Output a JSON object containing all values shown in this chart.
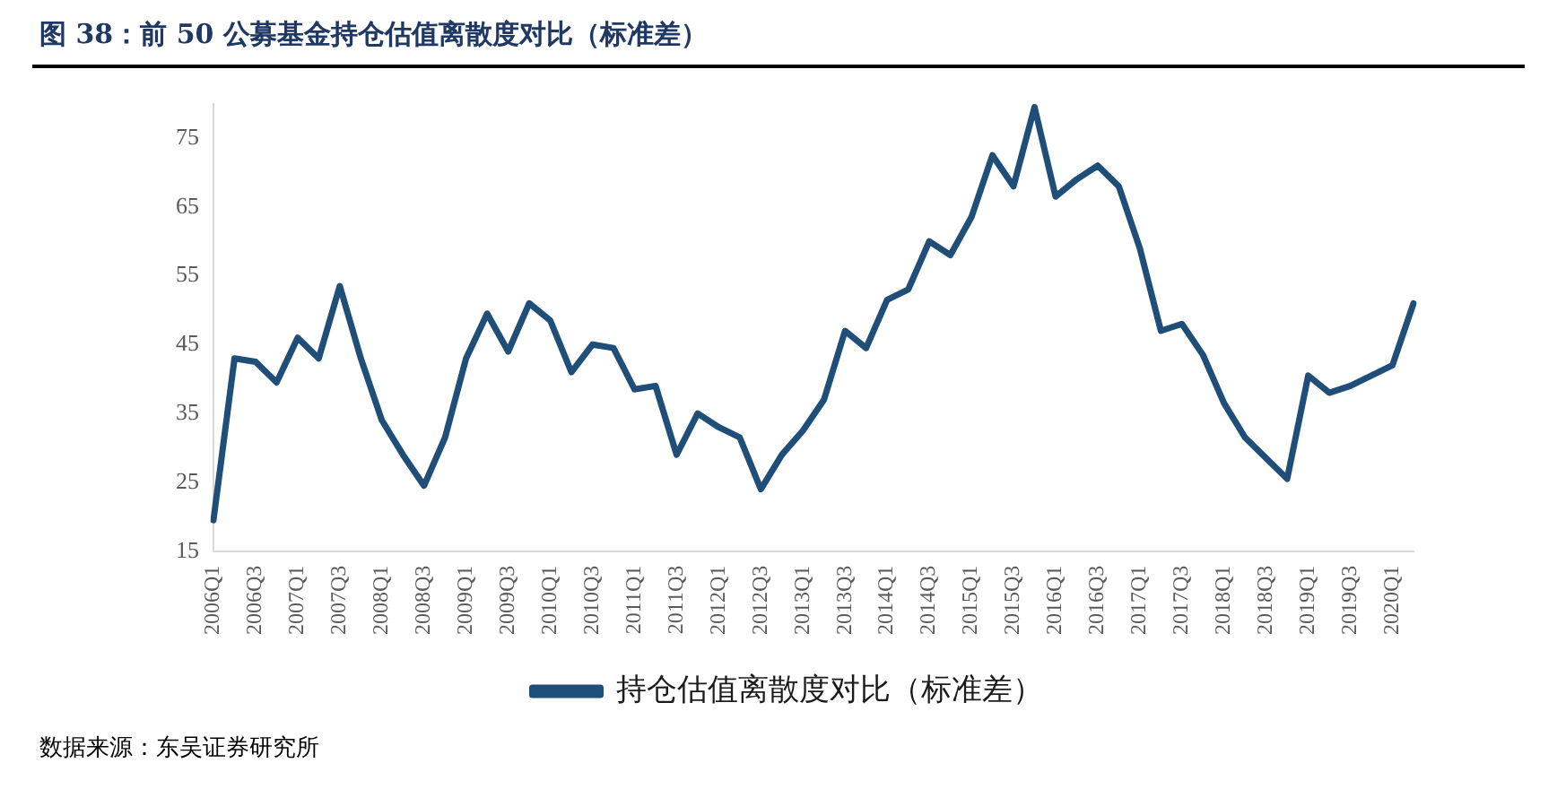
{
  "chart_data": {
    "type": "line",
    "title": "图 38：前 50 公募基金持仓估值离散度对比（标准差）",
    "categories": [
      "2006Q1",
      null,
      "2006Q3",
      null,
      "2007Q1",
      null,
      "2007Q3",
      null,
      "2008Q1",
      null,
      "2008Q3",
      null,
      "2009Q1",
      null,
      "2009Q3",
      null,
      "2010Q1",
      null,
      "2010Q3",
      null,
      "2011Q1",
      null,
      "2011Q3",
      null,
      "2012Q1",
      null,
      "2012Q3",
      null,
      "2013Q1",
      null,
      "2013Q3",
      null,
      "2014Q1",
      null,
      "2014Q3",
      null,
      "2015Q1",
      null,
      "2015Q3",
      null,
      "2016Q1",
      null,
      "2016Q3",
      null,
      "2017Q1",
      null,
      "2017Q3",
      null,
      "2018Q1",
      null,
      "2018Q3",
      null,
      "2019Q1",
      null,
      "2019Q3",
      null,
      "2020Q1",
      null
    ],
    "series": [
      {
        "name": "持仓估值离散度对比（标准差）",
        "color": "#1f4e79",
        "values": [
          19.5,
          43,
          42.5,
          39.5,
          46,
          43,
          53.5,
          43,
          34,
          29,
          24.5,
          31.5,
          43,
          49.5,
          44,
          51,
          48.5,
          41,
          45,
          44.5,
          38.5,
          39,
          29,
          35,
          33,
          31.5,
          24,
          29,
          32.5,
          37,
          47,
          44.5,
          51.5,
          53,
          60,
          58,
          63.5,
          72.5,
          68,
          79.5,
          66.5,
          69,
          71,
          68,
          59,
          47,
          48,
          43.5,
          36.5,
          31.5,
          28.5,
          25.5,
          40.5,
          38,
          39,
          40.5,
          42,
          51
        ]
      }
    ],
    "ylim": [
      15,
      80
    ],
    "yticks": [
      15,
      25,
      35,
      45,
      55,
      65,
      75
    ],
    "grid": false,
    "legend": "bottom",
    "marker": "none",
    "line_style": "solid",
    "annotations": [
      "数据来源：东吴证券研究所"
    ]
  }
}
